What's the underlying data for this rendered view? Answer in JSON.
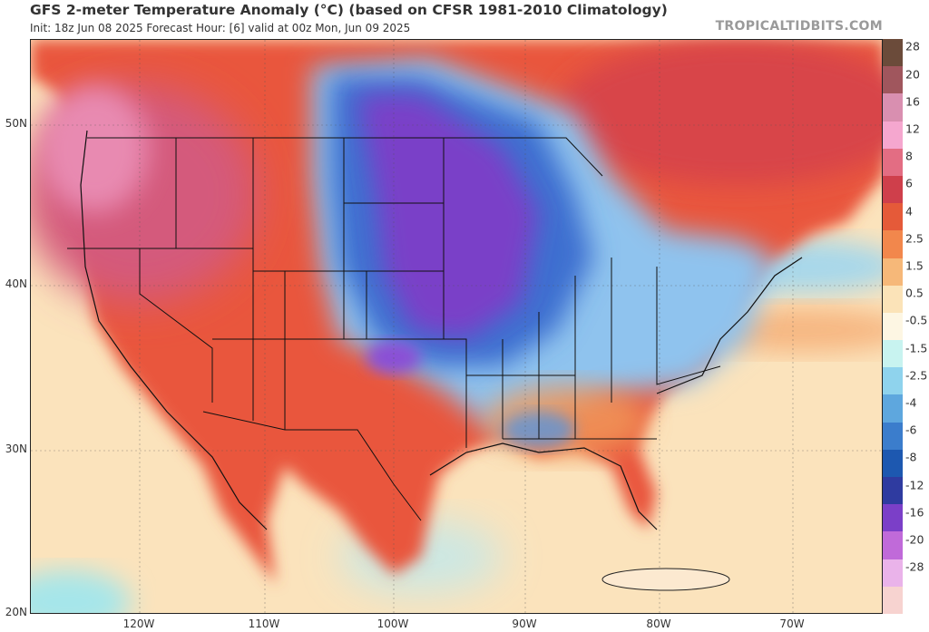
{
  "header": {
    "title": "GFS 2-meter Temperature Anomaly (°C) (based on CFSR 1981-2010 Climatology)",
    "subtitle": "Init: 18z Jun 08 2025   Forecast Hour: [6]   valid at 00z Mon, Jun 09 2025",
    "credit": "TROPICALTIDBITS.COM"
  },
  "axes": {
    "lat_labels": [
      "50N",
      "40N",
      "30N",
      "20N"
    ],
    "lon_labels": [
      "120W",
      "110W",
      "100W",
      "90W",
      "80W",
      "70W"
    ]
  },
  "legend": {
    "labels": [
      "28",
      "20",
      "16",
      "12",
      "8",
      "6",
      "4",
      "2.5",
      "1.5",
      "0.5",
      "-0.5",
      "-1.5",
      "-2.5",
      "-4",
      "-6",
      "-8",
      "-12",
      "-16",
      "-20",
      "-28"
    ],
    "colors": [
      "#6b4b3a",
      "#a0565d",
      "#d98fb0",
      "#f5a7cf",
      "#e36d83",
      "#cf3f4b",
      "#e55a39",
      "#f2874c",
      "#f6b879",
      "#fbe3b8",
      "#fdf6e3",
      "#c8f3f0",
      "#8fd3ed",
      "#5ea7de",
      "#3b7dcc",
      "#1d58b0",
      "#2f3ba0",
      "#7b3fc8",
      "#c06ad9",
      "#eab3ea",
      "#f7d3d0"
    ]
  },
  "map": {
    "colors": {
      "ocean": "#fbe3bc",
      "land_warm": "#e9573c",
      "pacific_nw": "#d65a7a",
      "canada": "#d94a47",
      "cold_core": "#7a3fc8",
      "cold_mid": "#3c6fd0",
      "cold_edge": "#8fc3ee",
      "southeast": "#f4a062"
    }
  }
}
